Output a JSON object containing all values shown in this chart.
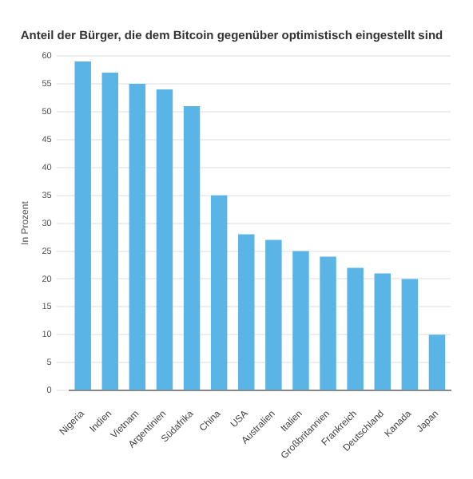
{
  "chart_data": {
    "type": "bar",
    "title": "Anteil der Bürger, die dem Bitcoin gegenüber optimistisch eingestellt sind",
    "ylabel": "In Prozent",
    "categories": [
      "Nigeria",
      "Indien",
      "Vietnam",
      "Argentinien",
      "Südafrika",
      "China",
      "USA",
      "Australien",
      "Italien",
      "Großbritannien",
      "Frankreich",
      "Deutschland",
      "Kanada",
      "Japan"
    ],
    "values": [
      59,
      57,
      55,
      54,
      51,
      35,
      28,
      27,
      25,
      24,
      22,
      21,
      20,
      10
    ],
    "color": "#5ab4e5",
    "ylim": [
      0,
      60
    ],
    "yticks": [
      0,
      5,
      10,
      15,
      20,
      25,
      30,
      35,
      40,
      45,
      50,
      55,
      60
    ],
    "grid": "y"
  }
}
